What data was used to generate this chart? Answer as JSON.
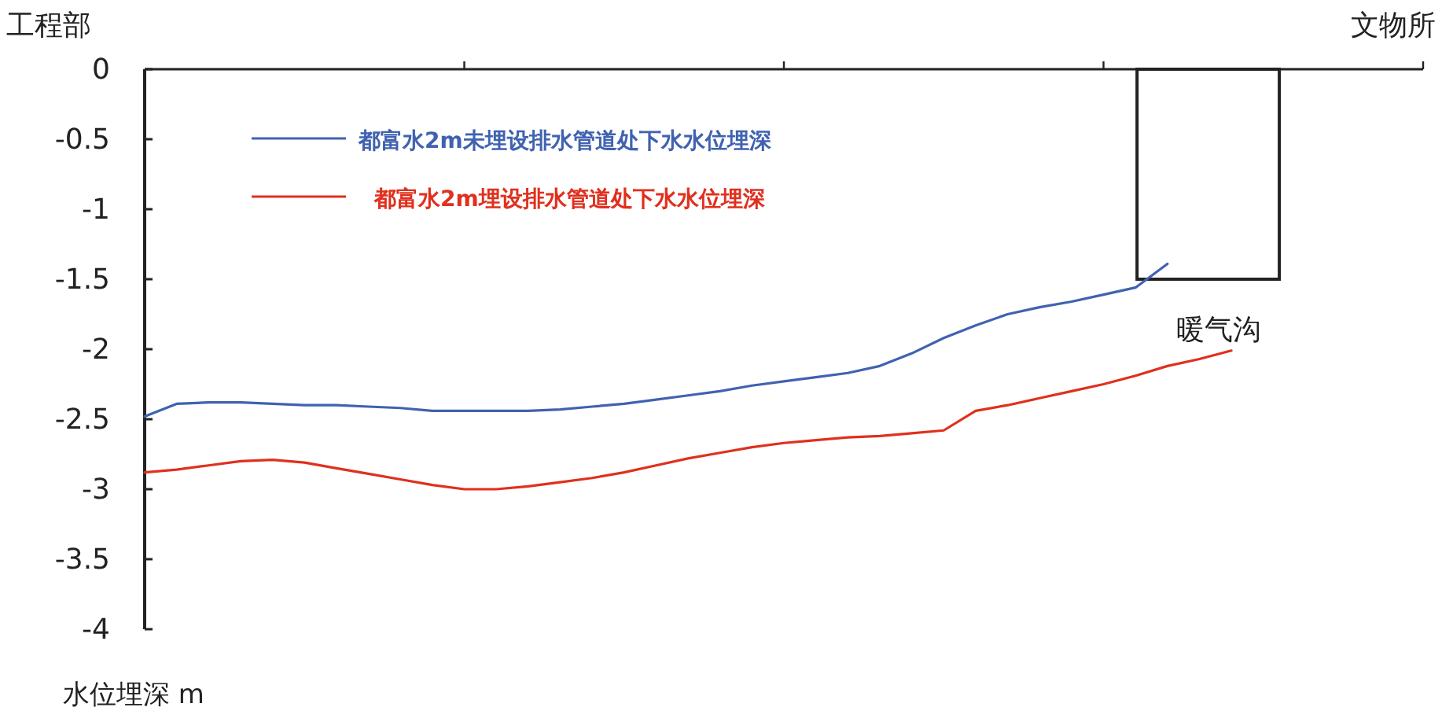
{
  "chart_data": {
    "type": "line",
    "ylabel": "水位埋深 m",
    "annotations": [
      "工程部",
      "文物所",
      "暖气沟"
    ],
    "categories": [
      null,
      null,
      null,
      null,
      null,
      null,
      null,
      null,
      null,
      null,
      null,
      null,
      null,
      null,
      null,
      null,
      null,
      null,
      null,
      null,
      null,
      null,
      null,
      null,
      null,
      null,
      null,
      null,
      null,
      null,
      null,
      null,
      null,
      null,
      null,
      null,
      null,
      null,
      null,
      null,
      null
    ],
    "series": [
      {
        "name": "都富水2m未埋设排水管道处下水水位埋深",
        "color": "#4062b0",
        "values": [
          -2.48,
          -2.39,
          -2.38,
          -2.38,
          -2.39,
          -2.4,
          -2.4,
          -2.41,
          -2.42,
          -2.44,
          -2.44,
          -2.44,
          -2.44,
          -2.43,
          -2.41,
          -2.39,
          -2.36,
          -2.33,
          -2.3,
          -2.26,
          -2.23,
          -2.2,
          -2.17,
          -2.12,
          -2.03,
          -1.92,
          -1.83,
          -1.75,
          -1.7,
          -1.66,
          -1.61,
          -1.56,
          -1.39,
          null,
          null,
          null,
          null,
          null,
          null,
          null,
          null
        ]
      },
      {
        "name": "都富水2m埋设排水管道处下水水位埋深",
        "color": "#e0301e",
        "values": [
          -2.88,
          -2.86,
          -2.83,
          -2.8,
          -2.79,
          -2.81,
          -2.85,
          -2.89,
          -2.93,
          -2.97,
          -3.0,
          -3.0,
          -2.98,
          -2.95,
          -2.92,
          -2.88,
          -2.83,
          -2.78,
          -2.74,
          -2.7,
          -2.67,
          -2.65,
          -2.63,
          -2.62,
          -2.6,
          -2.58,
          -2.44,
          -2.4,
          -2.35,
          -2.3,
          -2.25,
          -2.19,
          -2.12,
          -2.07,
          -2.01,
          null,
          null,
          null,
          null,
          null,
          null
        ]
      }
    ],
    "ylim": [
      -4,
      0
    ],
    "yticks": [
      {
        "value": 0,
        "label": "0"
      },
      {
        "value": -0.5,
        "label": "-0.5"
      },
      {
        "value": -1,
        "label": "-1"
      },
      {
        "value": -1.5,
        "label": "-1.5"
      },
      {
        "value": -2,
        "label": "-2"
      },
      {
        "value": -2.5,
        "label": "-2.5"
      },
      {
        "value": -3,
        "label": "-3"
      },
      {
        "value": -3.5,
        "label": "-3.5"
      },
      {
        "value": -4,
        "label": "-4"
      }
    ],
    "legend": "top left",
    "grid": false,
    "marker": "none",
    "line_style": "solid"
  }
}
